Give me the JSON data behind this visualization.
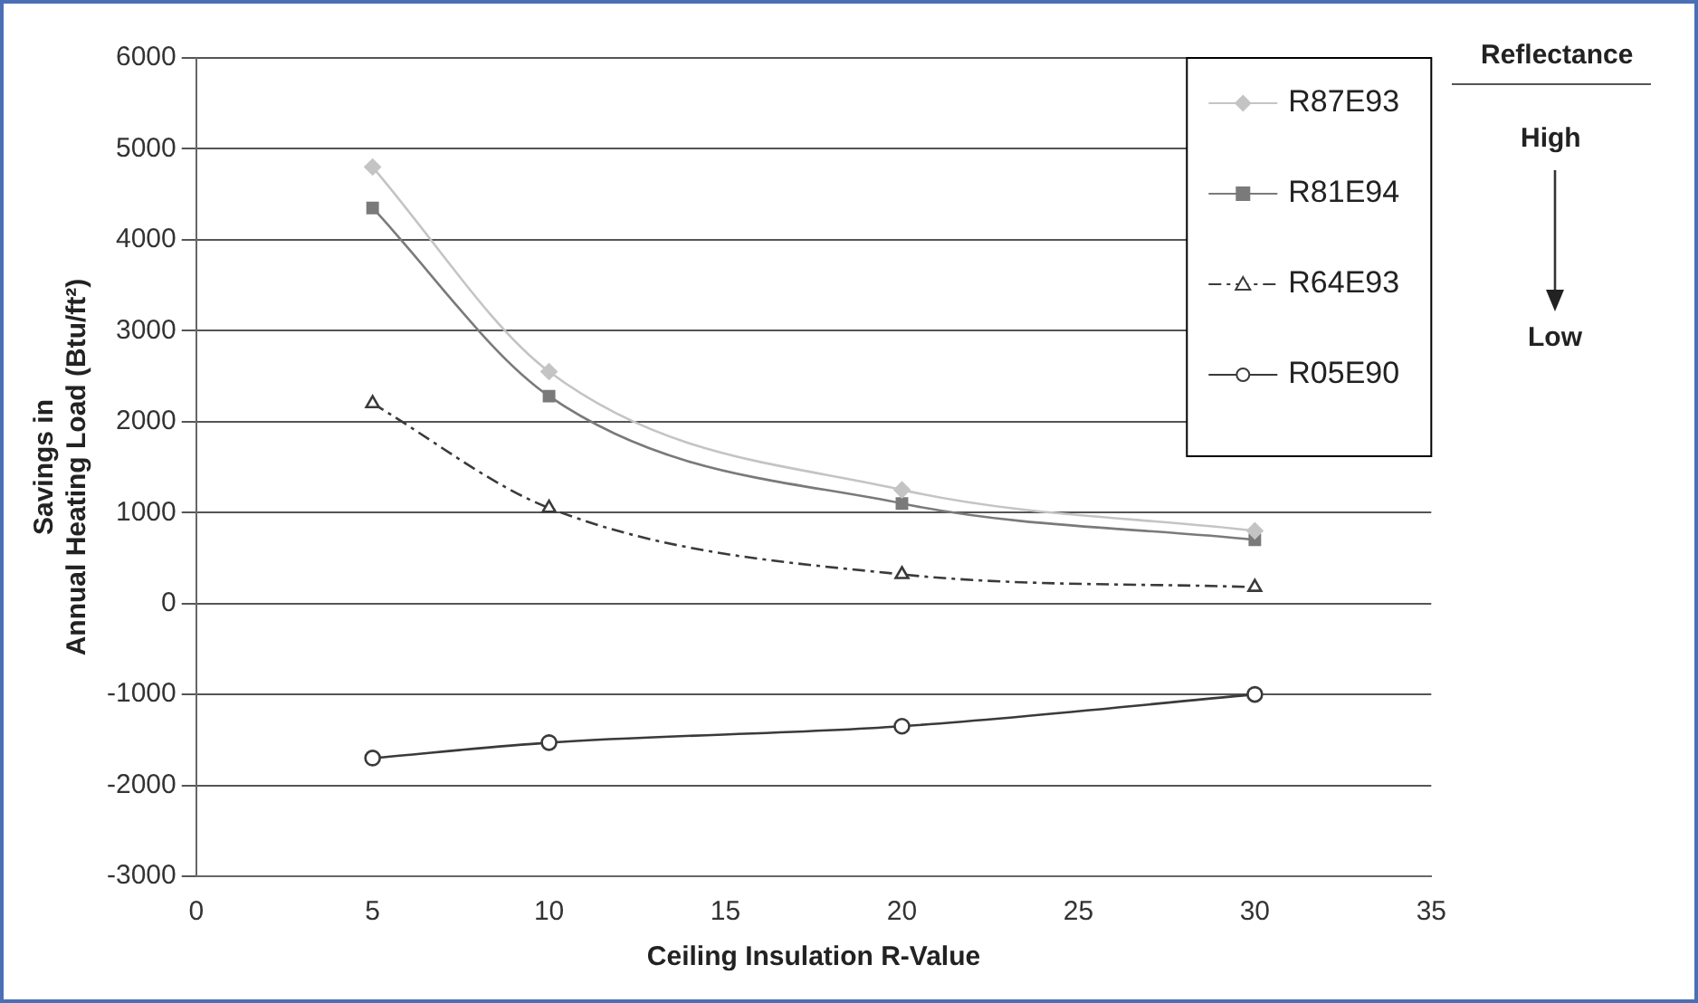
{
  "chart_data": {
    "type": "line",
    "xlabel": "Ceiling Insulation R-Value",
    "ylabel": "Savings in\nAnnual Heating Load (Btu/ft²)",
    "x": [
      5,
      10,
      20,
      30
    ],
    "series": [
      {
        "name": "R87E93",
        "color": "#c4c4c4",
        "marker": "diamond",
        "line_style": "solid",
        "values": [
          4800,
          2550,
          1250,
          800
        ]
      },
      {
        "name": "R81E94",
        "color": "#7a7a7a",
        "marker": "square",
        "line_style": "solid",
        "values": [
          4350,
          2280,
          1100,
          700
        ]
      },
      {
        "name": "R64E93",
        "color": "#3a3a3a",
        "marker": "triangle",
        "line_style": "dashed",
        "values": [
          2200,
          1050,
          320,
          180
        ]
      },
      {
        "name": "R05E90",
        "color": "#3a3a3a",
        "marker": "circle",
        "line_style": "solid",
        "values": [
          -1700,
          -1530,
          -1350,
          -1000
        ]
      }
    ],
    "xlim": [
      0,
      35
    ],
    "xticks": [
      0,
      5,
      10,
      15,
      20,
      25,
      30,
      35
    ],
    "ylim": [
      -3000,
      6000
    ],
    "yticks": [
      -3000,
      -2000,
      -1000,
      0,
      1000,
      2000,
      3000,
      4000,
      5000,
      6000
    ],
    "grid": "y",
    "legend": "top right",
    "annotations": [
      "Reflectance",
      "High",
      "Low"
    ]
  }
}
